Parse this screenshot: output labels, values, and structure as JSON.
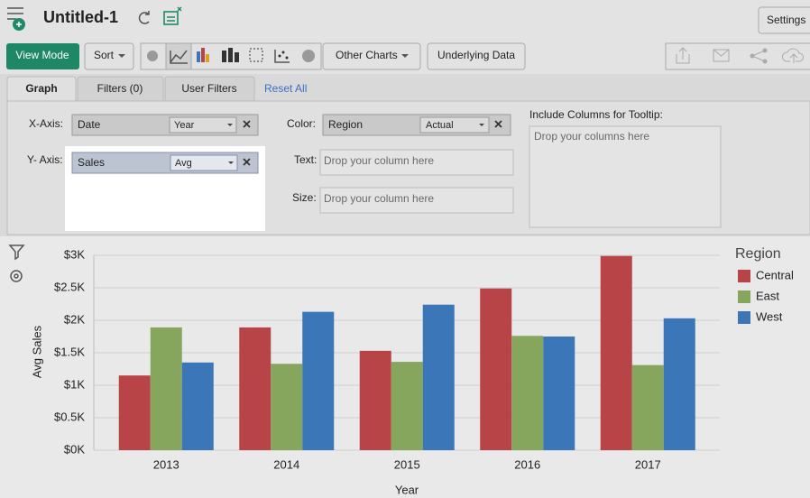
{
  "ui": {
    "title": "Untitled-1",
    "settings": "Settings",
    "toolbar": {
      "view_mode": "View Mode",
      "sort": "Sort",
      "other_charts": "Other Charts",
      "underlying_data": "Underlying Data"
    },
    "tabs": [
      "Graph",
      "Filters (0)",
      "User Filters"
    ],
    "reset_all": "Reset All",
    "x_axis": {
      "label": "X-Axis:",
      "field": "Date",
      "aggregate": "Year"
    },
    "color": {
      "label": "Color:",
      "field": "Region",
      "aggregate": "Actual"
    },
    "tooltip": {
      "label": "Include Columns for Tooltip:",
      "placeholder": "Drop your columns here"
    },
    "y_axis": {
      "label": "Y- Axis:",
      "field": "Sales",
      "aggregate": "Avg"
    },
    "text": {
      "label": "Text:",
      "placeholder": "Drop your column here"
    },
    "size": {
      "label": "Size:",
      "placeholder": "Drop your column here"
    }
  },
  "chart_data": {
    "type": "bar",
    "xlabel": "Year",
    "ylabel": "Avg Sales",
    "legend_title": "Region",
    "categories": [
      "2013",
      "2014",
      "2015",
      "2016",
      "2017"
    ],
    "series": [
      {
        "name": "Central",
        "color": "#b84447",
        "values": [
          1150,
          1890,
          1530,
          2490,
          2990
        ]
      },
      {
        "name": "East",
        "color": "#86a65e",
        "values": [
          1890,
          1330,
          1360,
          1760,
          1310
        ]
      },
      {
        "name": "West",
        "color": "#3a76b8",
        "values": [
          1350,
          2130,
          2240,
          1750,
          2030
        ]
      }
    ],
    "ylim": [
      0,
      3000
    ],
    "yticks": [
      {
        "value": 0,
        "label": "$0K"
      },
      {
        "value": 500,
        "label": "$0.5K"
      },
      {
        "value": 1000,
        "label": "$1K"
      },
      {
        "value": 1500,
        "label": "$1.5K"
      },
      {
        "value": 2000,
        "label": "$2K"
      },
      {
        "value": 2500,
        "label": "$2.5K"
      },
      {
        "value": 3000,
        "label": "$3K"
      }
    ],
    "grid": true
  }
}
